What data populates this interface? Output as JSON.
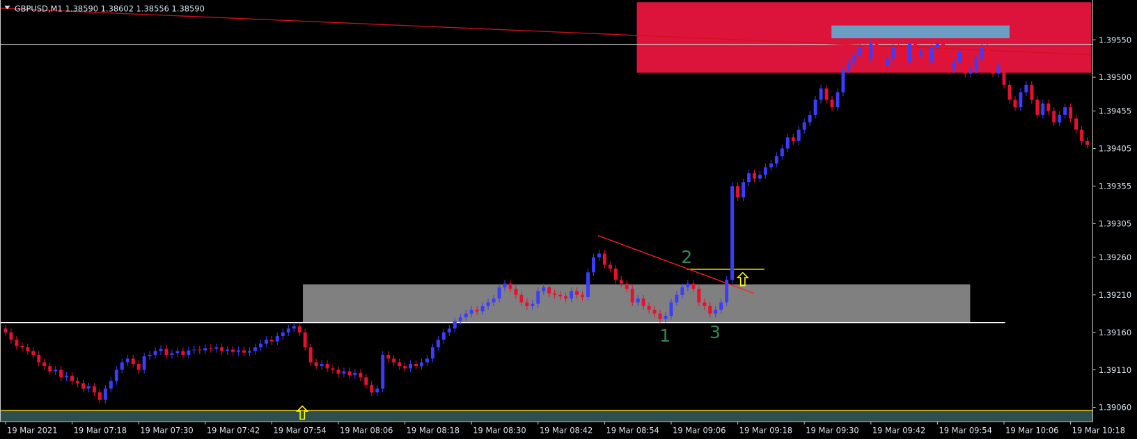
{
  "chart_data": {
    "type": "candlestick",
    "title": "GBPUSD,M1",
    "subtitle": "1.38590 1.38602 1.38556 1.38590",
    "up_color": "#3c3cff",
    "down_color": "#e8102e",
    "xlim": [
      -1,
      196
    ],
    "ylim": [
      1.39041,
      1.39603
    ],
    "xticks": [
      {
        "value": 0,
        "label": "19 Mar 2021"
      },
      {
        "value": 12,
        "label": "19 Mar 07:18"
      },
      {
        "value": 24,
        "label": "19 Mar 07:30"
      },
      {
        "value": 36,
        "label": "19 Mar 07:42"
      },
      {
        "value": 48,
        "label": "19 Mar 07:54"
      },
      {
        "value": 60,
        "label": "19 Mar 08:06"
      },
      {
        "value": 72,
        "label": "19 Mar 08:18"
      },
      {
        "value": 84,
        "label": "19 Mar 08:30"
      },
      {
        "value": 96,
        "label": "19 Mar 08:42"
      },
      {
        "value": 108,
        "label": "19 Mar 08:54"
      },
      {
        "value": 120,
        "label": "19 Mar 09:06"
      },
      {
        "value": 132,
        "label": "19 Mar 09:18"
      },
      {
        "value": 144,
        "label": "19 Mar 09:30"
      },
      {
        "value": 156,
        "label": "19 Mar 09:42"
      },
      {
        "value": 168,
        "label": "19 Mar 09:54"
      },
      {
        "value": 180,
        "label": "19 Mar 10:06"
      },
      {
        "value": 192,
        "label": "19 Mar 10:18"
      }
    ],
    "yticks": [
      {
        "value": 1.3955,
        "label": "1.39550"
      },
      {
        "value": 1.395,
        "label": "1.39500"
      },
      {
        "value": 1.39455,
        "label": "1.39455"
      },
      {
        "value": 1.39405,
        "label": "1.39405"
      },
      {
        "value": 1.39355,
        "label": "1.39355"
      },
      {
        "value": 1.39305,
        "label": "1.39305"
      },
      {
        "value": 1.3926,
        "label": "1.39260"
      },
      {
        "value": 1.3921,
        "label": "1.39210"
      },
      {
        "value": 1.3916,
        "label": "1.39160"
      },
      {
        "value": 1.3911,
        "label": "1.39110"
      },
      {
        "value": 1.3906,
        "label": "1.39060"
      }
    ],
    "open": [
      1.39165,
      1.3916,
      1.3915,
      1.39142,
      1.3914,
      1.39135,
      1.3913,
      1.3912,
      1.39115,
      1.39108,
      1.3911,
      1.391,
      1.39102,
      1.39095,
      1.39092,
      1.39085,
      1.39088,
      1.3908,
      1.3907,
      1.39085,
      1.39095,
      1.3911,
      1.3912,
      1.39125,
      1.39118,
      1.3911,
      1.39128,
      1.3913,
      1.39135,
      1.39138,
      1.3913,
      1.39132,
      1.39135,
      1.3913,
      1.39136,
      1.39137,
      1.39136,
      1.39139,
      1.39138,
      1.3914,
      1.39135,
      1.39137,
      1.39134,
      1.39136,
      1.39133,
      1.39135,
      1.3914,
      1.39145,
      1.3915,
      1.39148,
      1.39155,
      1.3916,
      1.39165,
      1.39168,
      1.3916,
      1.3914,
      1.3912,
      1.39115,
      1.39118,
      1.39112,
      1.3911,
      1.39105,
      1.39108,
      1.39103,
      1.39106,
      1.391,
      1.3909,
      1.3908,
      1.39085,
      1.3913,
      1.39125,
      1.3912,
      1.39115,
      1.39112,
      1.39118,
      1.39115,
      1.3912,
      1.39125,
      1.3914,
      1.3915,
      1.3916,
      1.39165,
      1.39175,
      1.3918,
      1.39185,
      1.3919,
      1.39188,
      1.39195,
      1.392,
      1.39205,
      1.3922,
      1.39225,
      1.39218,
      1.3921,
      1.392,
      1.39195,
      1.39198,
      1.39215,
      1.3922,
      1.39212,
      1.3921,
      1.39208,
      1.39205,
      1.39215,
      1.3921,
      1.39207,
      1.3924,
      1.3926,
      1.39265,
      1.3925,
      1.39245,
      1.3923,
      1.39225,
      1.39218,
      1.392,
      1.39205,
      1.39195,
      1.3919,
      1.39185,
      1.39178,
      1.39182,
      1.392,
      1.3921,
      1.3922,
      1.39225,
      1.39218,
      1.392,
      1.39195,
      1.39185,
      1.3919,
      1.392,
      1.3923,
      1.39355,
      1.3934,
      1.3936,
      1.39372,
      1.39365,
      1.3937,
      1.3938,
      1.39385,
      1.39395,
      1.39405,
      1.3942,
      1.39415,
      1.3943,
      1.3944,
      1.3945,
      1.3947,
      1.39485,
      1.3947,
      1.3946,
      1.3948,
      1.3951,
      1.3952,
      1.3953,
      1.3954,
      1.39525,
      1.39545,
      1.3953,
      1.39515,
      1.39525,
      1.3954,
      1.39535,
      1.3952,
      1.39545,
      1.3953,
      1.39535,
      1.3952,
      1.3954,
      1.39545,
      1.3953,
      1.3951,
      1.3952,
      1.39535,
      1.39505,
      1.3951,
      1.39525,
      1.3954,
      1.3952,
      1.39505,
      1.39515,
      1.3949,
      1.3947,
      1.3946,
      1.3948,
      1.3949,
      1.3947,
      1.3945,
      1.39465,
      1.39455,
      1.3944,
      1.3945,
      1.3946,
      1.39445,
      1.3943,
      1.39415
    ],
    "high": [
      1.3917,
      1.39165,
      1.39155,
      1.39147,
      1.39145,
      1.3914,
      1.39135,
      1.39125,
      1.3912,
      1.39115,
      1.39115,
      1.39107,
      1.39107,
      1.391,
      1.39097,
      1.39093,
      1.39093,
      1.39085,
      1.3909,
      1.391,
      1.39115,
      1.39125,
      1.3913,
      1.3913,
      1.39123,
      1.39133,
      1.39135,
      1.3914,
      1.39143,
      1.39143,
      1.39137,
      1.3914,
      1.3914,
      1.39141,
      1.39142,
      1.39142,
      1.39144,
      1.39144,
      1.39145,
      1.39145,
      1.39142,
      1.39142,
      1.39141,
      1.39141,
      1.3914,
      1.39145,
      1.3915,
      1.39155,
      1.39155,
      1.3916,
      1.39165,
      1.3917,
      1.39173,
      1.39173,
      1.39165,
      1.39145,
      1.39125,
      1.39123,
      1.39123,
      1.39117,
      1.39115,
      1.39113,
      1.39113,
      1.39111,
      1.39111,
      1.39105,
      1.39095,
      1.3909,
      1.39135,
      1.39135,
      1.3913,
      1.39125,
      1.3912,
      1.39123,
      1.39123,
      1.39125,
      1.3913,
      1.39145,
      1.39155,
      1.39165,
      1.3917,
      1.3918,
      1.39185,
      1.3919,
      1.39195,
      1.39195,
      1.392,
      1.39205,
      1.3921,
      1.39225,
      1.3923,
      1.3923,
      1.39223,
      1.39215,
      1.39205,
      1.39203,
      1.3922,
      1.39225,
      1.39225,
      1.39217,
      1.39215,
      1.39213,
      1.3922,
      1.3922,
      1.39215,
      1.39245,
      1.39265,
      1.3927,
      1.3927,
      1.39255,
      1.3925,
      1.39235,
      1.3923,
      1.39223,
      1.3921,
      1.3921,
      1.392,
      1.39195,
      1.3919,
      1.39187,
      1.39205,
      1.39215,
      1.39225,
      1.3923,
      1.3923,
      1.39223,
      1.39205,
      1.392,
      1.39195,
      1.39205,
      1.39235,
      1.3936,
      1.3936,
      1.39365,
      1.39377,
      1.39377,
      1.39375,
      1.39385,
      1.3939,
      1.394,
      1.3941,
      1.39425,
      1.39425,
      1.39435,
      1.39445,
      1.39455,
      1.39475,
      1.3949,
      1.3949,
      1.39475,
      1.39485,
      1.39515,
      1.39525,
      1.39535,
      1.39545,
      1.39545,
      1.3955,
      1.3955,
      1.39535,
      1.3953,
      1.39545,
      1.39545,
      1.3954,
      1.3955,
      1.3955,
      1.3954,
      1.3954,
      1.39545,
      1.3955,
      1.3955,
      1.39535,
      1.39525,
      1.3954,
      1.3954,
      1.39515,
      1.3953,
      1.39545,
      1.39545,
      1.39525,
      1.3952,
      1.3952,
      1.39495,
      1.39475,
      1.39485,
      1.39495,
      1.39495,
      1.39475,
      1.3947,
      1.3947,
      1.3946,
      1.39455,
      1.39465,
      1.39465,
      1.3945,
      1.39435,
      1.3942
    ],
    "low": [
      1.39155,
      1.39145,
      1.39137,
      1.39135,
      1.3913,
      1.39125,
      1.39115,
      1.3911,
      1.39103,
      1.39103,
      1.39095,
      1.39095,
      1.3909,
      1.39087,
      1.3908,
      1.3908,
      1.39075,
      1.39065,
      1.39065,
      1.3908,
      1.3909,
      1.39105,
      1.39115,
      1.39113,
      1.39105,
      1.39105,
      1.39123,
      1.39125,
      1.3913,
      1.39125,
      1.39125,
      1.39127,
      1.39125,
      1.39125,
      1.39131,
      1.39131,
      1.39131,
      1.39133,
      1.39133,
      1.3913,
      1.3913,
      1.39129,
      1.39129,
      1.39128,
      1.39128,
      1.3913,
      1.39135,
      1.3914,
      1.39143,
      1.39143,
      1.3915,
      1.39155,
      1.3916,
      1.39155,
      1.39135,
      1.39115,
      1.3911,
      1.3911,
      1.39107,
      1.39105,
      1.391,
      1.391,
      1.39098,
      1.39098,
      1.39095,
      1.39085,
      1.39075,
      1.39075,
      1.3908,
      1.3912,
      1.39115,
      1.3911,
      1.39107,
      1.39107,
      1.3911,
      1.3911,
      1.39115,
      1.3912,
      1.39135,
      1.39145,
      1.39155,
      1.3916,
      1.3917,
      1.39175,
      1.3918,
      1.39183,
      1.39183,
      1.3919,
      1.39195,
      1.392,
      1.39215,
      1.39213,
      1.39205,
      1.39195,
      1.3919,
      1.3919,
      1.39193,
      1.3921,
      1.39207,
      1.39205,
      1.39203,
      1.392,
      1.392,
      1.39205,
      1.39202,
      1.39202,
      1.39235,
      1.39255,
      1.39245,
      1.3924,
      1.39225,
      1.3922,
      1.39213,
      1.39195,
      1.39195,
      1.3919,
      1.39185,
      1.3918,
      1.39173,
      1.39173,
      1.39177,
      1.39195,
      1.39205,
      1.39215,
      1.39213,
      1.39195,
      1.3919,
      1.3918,
      1.3918,
      1.39185,
      1.39195,
      1.39225,
      1.39335,
      1.39335,
      1.39355,
      1.3936,
      1.3936,
      1.39365,
      1.39375,
      1.3938,
      1.3939,
      1.394,
      1.3941,
      1.3941,
      1.39425,
      1.39435,
      1.39445,
      1.39465,
      1.39465,
      1.39455,
      1.39455,
      1.39475,
      1.39505,
      1.39515,
      1.39525,
      1.3952,
      1.3952,
      1.39525,
      1.3951,
      1.3951,
      1.3952,
      1.3953,
      1.39515,
      1.39515,
      1.39525,
      1.39525,
      1.39515,
      1.39515,
      1.39535,
      1.39525,
      1.39505,
      1.39505,
      1.39515,
      1.395,
      1.395,
      1.39505,
      1.3952,
      1.39515,
      1.395,
      1.395,
      1.39485,
      1.39465,
      1.39455,
      1.39455,
      1.39475,
      1.39465,
      1.39445,
      1.39445,
      1.3945,
      1.39435,
      1.39435,
      1.39445,
      1.3944,
      1.39425,
      1.3941,
      1.39405
    ],
    "close": [
      1.3916,
      1.3915,
      1.39142,
      1.3914,
      1.39135,
      1.3913,
      1.3912,
      1.39115,
      1.39108,
      1.3911,
      1.391,
      1.39102,
      1.39095,
      1.39092,
      1.39085,
      1.39088,
      1.3908,
      1.3907,
      1.39085,
      1.39095,
      1.3911,
      1.3912,
      1.39125,
      1.39118,
      1.3911,
      1.39128,
      1.3913,
      1.39135,
      1.39138,
      1.3913,
      1.39132,
      1.39135,
      1.3913,
      1.39136,
      1.39137,
      1.39136,
      1.39139,
      1.39138,
      1.3914,
      1.39135,
      1.39137,
      1.39134,
      1.39136,
      1.39133,
      1.39135,
      1.3914,
      1.39145,
      1.3915,
      1.39148,
      1.39155,
      1.3916,
      1.39165,
      1.39168,
      1.3916,
      1.3914,
      1.3912,
      1.39115,
      1.39118,
      1.39112,
      1.3911,
      1.39105,
      1.39108,
      1.39103,
      1.39106,
      1.391,
      1.3909,
      1.3908,
      1.39085,
      1.3913,
      1.39125,
      1.3912,
      1.39115,
      1.39112,
      1.39118,
      1.39115,
      1.3912,
      1.39125,
      1.3914,
      1.3915,
      1.3916,
      1.39165,
      1.39175,
      1.3918,
      1.39185,
      1.3919,
      1.39188,
      1.39195,
      1.392,
      1.39205,
      1.3922,
      1.39225,
      1.39218,
      1.3921,
      1.392,
      1.39195,
      1.39198,
      1.39215,
      1.3922,
      1.39212,
      1.3921,
      1.39208,
      1.39205,
      1.39215,
      1.3921,
      1.39207,
      1.3924,
      1.3926,
      1.39265,
      1.3925,
      1.39245,
      1.3923,
      1.39225,
      1.39218,
      1.392,
      1.39205,
      1.39195,
      1.3919,
      1.39185,
      1.39178,
      1.39182,
      1.392,
      1.3921,
      1.3922,
      1.39225,
      1.39218,
      1.392,
      1.39195,
      1.39185,
      1.3919,
      1.392,
      1.3923,
      1.39355,
      1.3934,
      1.3936,
      1.39372,
      1.39365,
      1.3937,
      1.3938,
      1.39385,
      1.39395,
      1.39405,
      1.3942,
      1.39415,
      1.3943,
      1.3944,
      1.3945,
      1.3947,
      1.39485,
      1.3947,
      1.3946,
      1.3948,
      1.3951,
      1.3952,
      1.3953,
      1.3954,
      1.39525,
      1.39545,
      1.3953,
      1.39515,
      1.39525,
      1.3954,
      1.39535,
      1.3952,
      1.39545,
      1.3953,
      1.39535,
      1.3952,
      1.3954,
      1.39545,
      1.3953,
      1.3951,
      1.3952,
      1.39535,
      1.39505,
      1.3951,
      1.39525,
      1.3954,
      1.3952,
      1.39505,
      1.39515,
      1.3949,
      1.3947,
      1.3946,
      1.3948,
      1.3949,
      1.3947,
      1.3945,
      1.39465,
      1.39455,
      1.3944,
      1.3945,
      1.3946,
      1.39445,
      1.3943,
      1.39415,
      1.3941
    ],
    "zones": [
      {
        "x": [
          -1,
          196
        ],
        "y": [
          1.39041,
          1.39056
        ],
        "color": "#2f4f4f"
      },
      {
        "x": [
          113.8,
          195.7
        ],
        "y": [
          1.39506,
          1.396
        ],
        "color": "#dc143c"
      },
      {
        "x": [
          53.6,
          173.9
        ],
        "y": [
          1.39173,
          1.39224
        ],
        "color": "#808080"
      },
      {
        "x": [
          148.9,
          181
        ],
        "y": [
          1.39552,
          1.39569
        ],
        "color": "#6a9ec4"
      }
    ],
    "lines": [
      {
        "x": [
          -1,
          196
        ],
        "y": [
          1.39544,
          1.39544
        ],
        "color": "#d0d0d0"
      },
      {
        "x": [
          -1,
          180.2
        ],
        "y": [
          1.39173,
          1.39173
        ],
        "color": "#ffffff"
      },
      {
        "x": [
          -1,
          196
        ],
        "y": [
          1.39056,
          1.39056
        ],
        "color": "#ffd700"
      },
      {
        "x": [
          122.9,
          136.8
        ],
        "y": [
          1.39244,
          1.39244
        ],
        "color": "#ffd700"
      },
      {
        "x": [
          -1,
          195.7
        ],
        "y": [
          1.39592,
          1.3953
        ],
        "color": "#d01020"
      },
      {
        "x": [
          106.8,
          134.9
        ],
        "y": [
          1.39289,
          1.39212
        ],
        "color": "#ff2020"
      }
    ],
    "arrows": [
      {
        "x": 53.5,
        "y": 1.39052,
        "color": "#ffff00"
      },
      {
        "x": 132.9,
        "y": 1.3923,
        "color": "#ffff00"
      }
    ],
    "annotations": [
      {
        "text": "1",
        "x": 118.9,
        "y": 1.39154,
        "color": "#2e8b57"
      },
      {
        "text": "2",
        "x": 122.8,
        "y": 1.39259,
        "color": "#2e8b57"
      },
      {
        "text": "3",
        "x": 127.9,
        "y": 1.39159,
        "color": "#2e8b57"
      }
    ]
  }
}
